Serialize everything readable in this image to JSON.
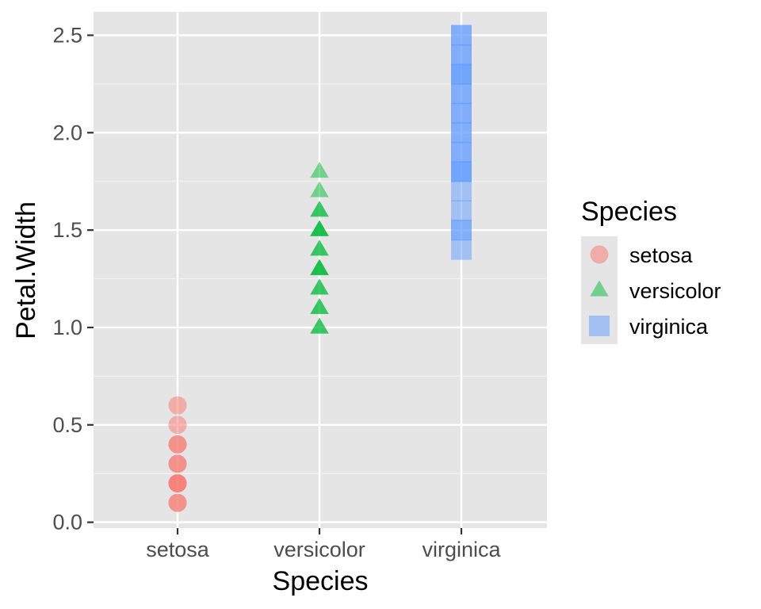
{
  "chart_data": {
    "type": "scatter",
    "title": "",
    "xlabel": "Species",
    "ylabel": "Petal.Width",
    "categories": [
      "setosa",
      "versicolor",
      "virginica"
    ],
    "ylim": [
      -0.03,
      2.62
    ],
    "yticks": [
      0.0,
      0.5,
      1.0,
      1.5,
      2.0,
      2.5
    ],
    "ytick_labels": [
      "0.0",
      "0.5",
      "1.0",
      "1.5",
      "2.0",
      "2.5"
    ],
    "grid": true,
    "legend": {
      "title": "Species",
      "position": "right",
      "entries": [
        "setosa",
        "versicolor",
        "virginica"
      ]
    },
    "series": [
      {
        "name": "setosa",
        "category": "setosa",
        "shape": "circle",
        "color": "#F8766D",
        "values": [
          0.1,
          0.1,
          0.2,
          0.2,
          0.2,
          0.3,
          0.3,
          0.4,
          0.4,
          0.5,
          0.6
        ]
      },
      {
        "name": "versicolor",
        "category": "versicolor",
        "shape": "triangle",
        "color": "#00BA38",
        "values": [
          1.0,
          1.0,
          1.1,
          1.1,
          1.2,
          1.2,
          1.3,
          1.3,
          1.3,
          1.4,
          1.4,
          1.5,
          1.5,
          1.5,
          1.6,
          1.6,
          1.7,
          1.8
        ]
      },
      {
        "name": "virginica",
        "category": "virginica",
        "shape": "square",
        "color": "#619CFF",
        "values": [
          1.4,
          1.5,
          1.5,
          1.6,
          1.7,
          1.8,
          1.8,
          1.8,
          1.9,
          1.9,
          2.0,
          2.0,
          2.1,
          2.1,
          2.2,
          2.2,
          2.3,
          2.3,
          2.3,
          2.4,
          2.4,
          2.5,
          2.5
        ]
      }
    ]
  },
  "colors": {
    "panel_background": "#E5E5E5",
    "grid_major": "#FFFFFF",
    "grid_minor": "#F2F2F2",
    "tick_text": "#4D4D4D",
    "legend_key_background": "#E5E5E5"
  },
  "point_alpha": 0.5
}
